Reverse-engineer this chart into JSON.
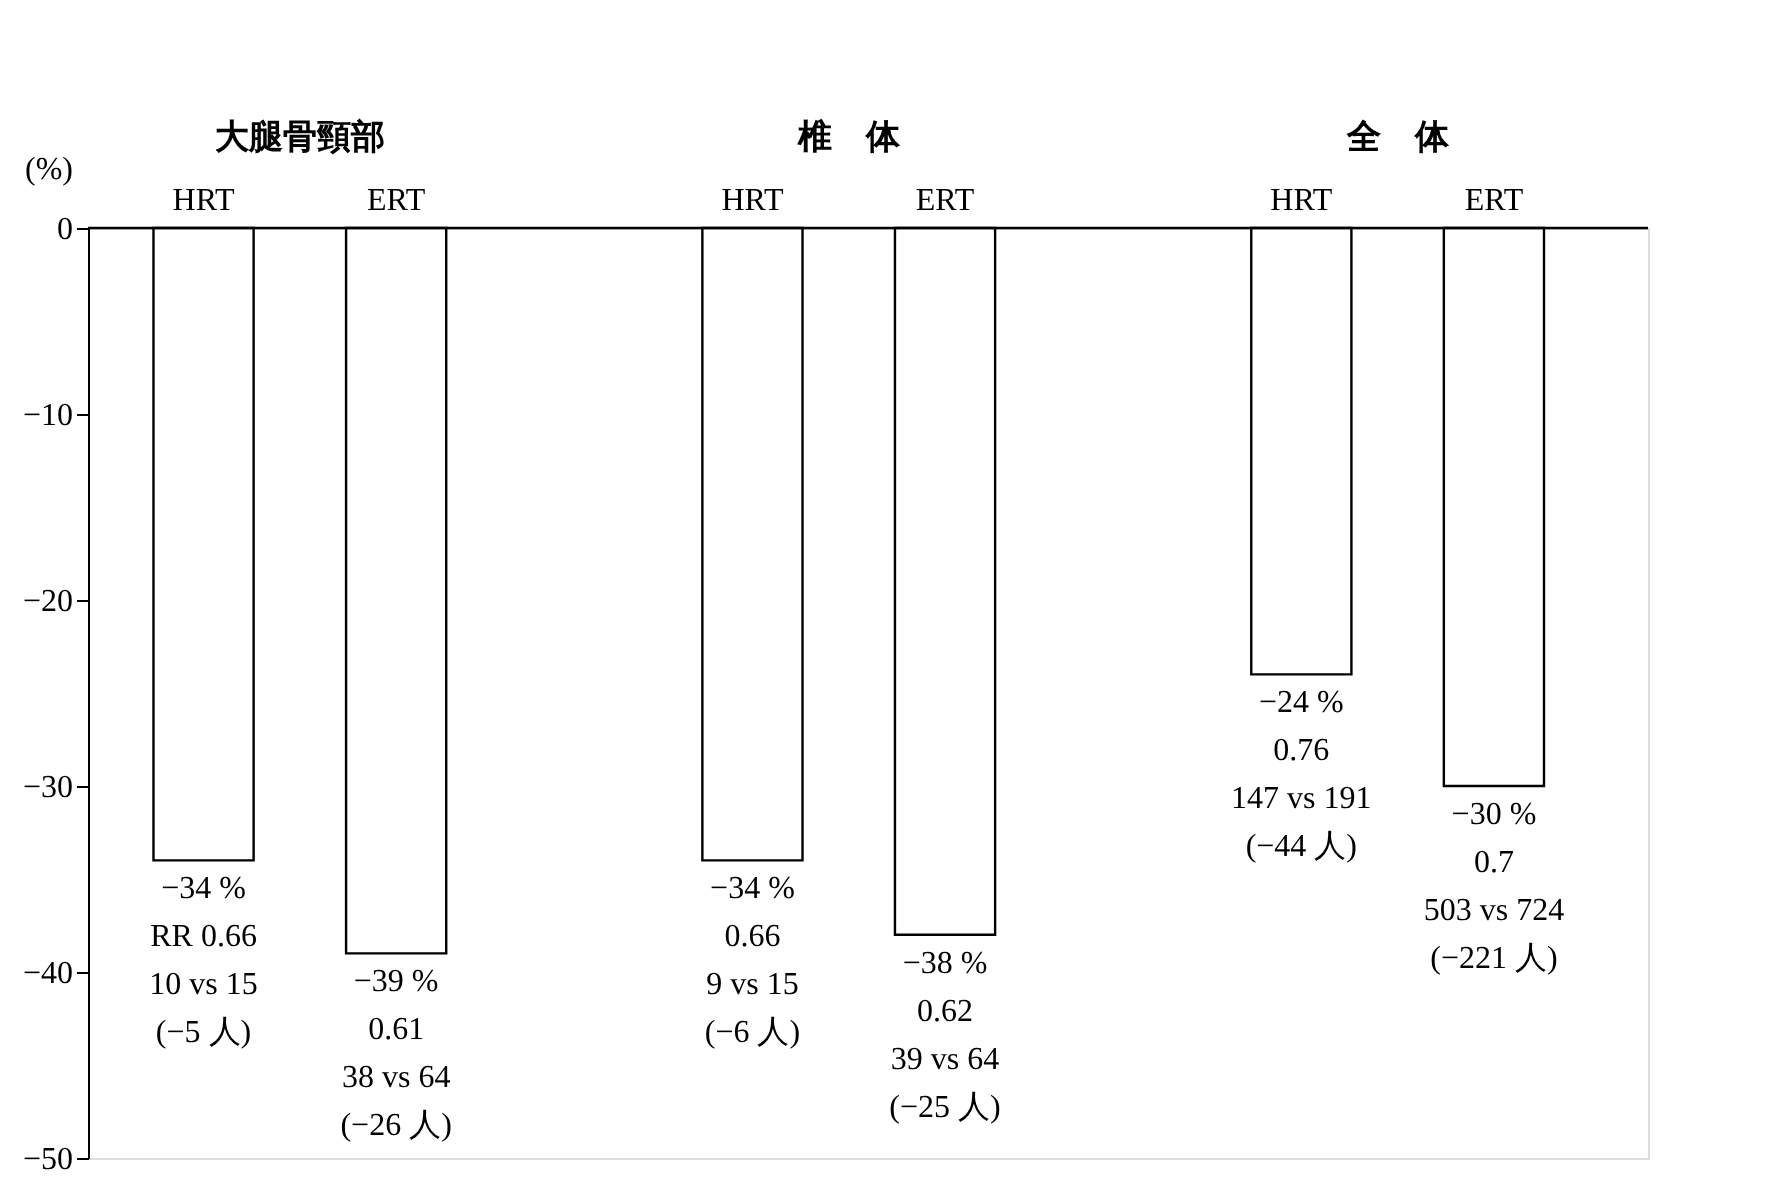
{
  "chart_data": {
    "type": "bar",
    "categories": [
      "HRT",
      "ERT",
      "HRT",
      "ERT",
      "HRT",
      "ERT"
    ],
    "values": [
      -34,
      -39,
      -34,
      -38,
      -24,
      -30
    ],
    "color": "#ffffff",
    "value_labels": [
      "−34 %\nRR 0.66\n10 vs 15\n(−5 人)",
      "−39 %\n0.61\n38 vs 64\n(−26 人)",
      "−34 %\n0.66\n9 vs 15\n(−6 人)",
      "−38 %\n0.62\n39 vs 64\n(−25 人)",
      "−24 %\n0.76\n147 vs 191\n(−44 人)",
      "−30 %\n0.7\n503 vs 724\n(−221 人)"
    ],
    "ylabel": "(%)",
    "ylim": [
      -50,
      0
    ],
    "yticks": [
      0,
      {
        "value": -10,
        "label": "−10"
      },
      {
        "value": -20,
        "label": "−20"
      },
      {
        "value": -30,
        "label": "−30"
      },
      {
        "value": -40,
        "label": "−40"
      },
      {
        "value": -50,
        "label": "−50"
      }
    ],
    "annotations": [
      "大腿骨頸部",
      "椎　体",
      "全　体"
    ],
    "grid": false
  }
}
